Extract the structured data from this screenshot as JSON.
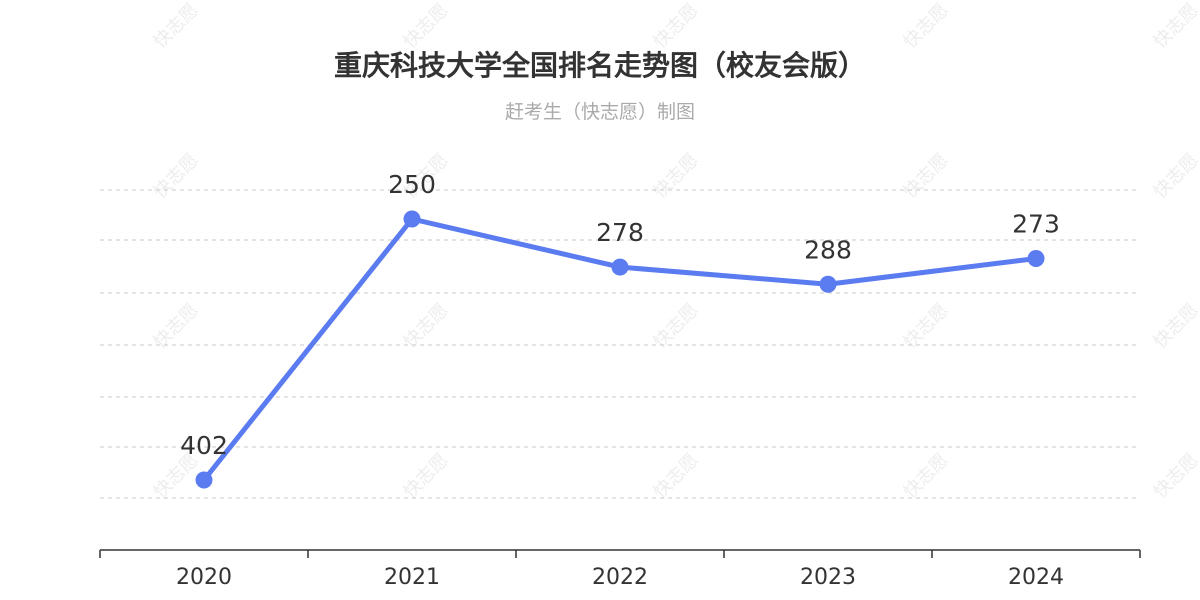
{
  "chart_data": {
    "type": "line",
    "title": "重庆科技大学全国排名走势图（校友会版）",
    "subtitle": "赶考生（快志愿）制图",
    "categories": [
      "2020",
      "2021",
      "2022",
      "2023",
      "2024"
    ],
    "series": [
      {
        "values": [
          402,
          250,
          278,
          288,
          273
        ]
      }
    ],
    "y_reversed": true,
    "ylim": [
      200,
      450
    ],
    "grid": "horizontal-dashed",
    "line_color": "#5b7bf0",
    "watermark": "快志愿"
  }
}
